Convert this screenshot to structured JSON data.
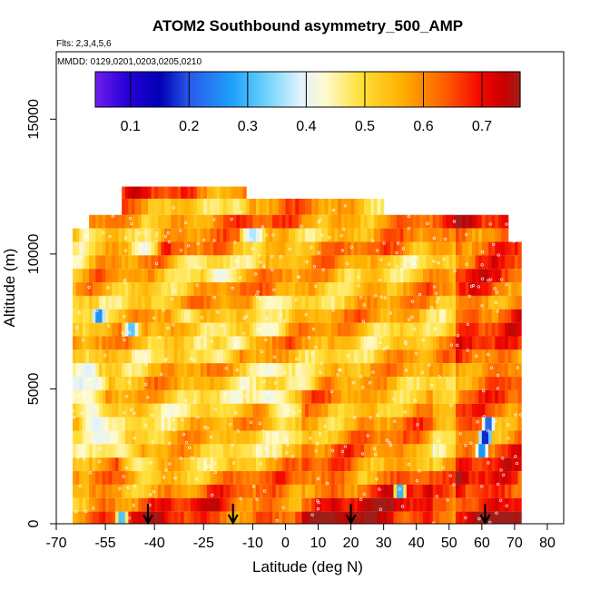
{
  "chart_data": {
    "type": "heatmap",
    "title": "ATOM2 Southbound asymmetry_500_AMP",
    "flights_label": "Flts: 2,3,4,5,6",
    "dates_label": "MMDD: 0129,0201,0203,0205,0210",
    "xlabel": "Latitude (deg N)",
    "ylabel": "Altitude (m)",
    "xlim": [
      -70,
      85
    ],
    "ylim": [
      0,
      17500
    ],
    "x_ticks": [
      -70,
      -55,
      -40,
      -25,
      -10,
      0,
      10,
      20,
      30,
      40,
      50,
      60,
      70,
      80
    ],
    "x_tick_labels": [
      "-70",
      "-55",
      "-40",
      "-25",
      "-10",
      "0",
      "10",
      "20",
      "30",
      "40",
      "50",
      "60",
      "70",
      "80"
    ],
    "y_ticks": [
      0,
      5000,
      10000,
      15000
    ],
    "y_tick_labels": [
      "0",
      "5000",
      "10000",
      "15000"
    ],
    "colorbar": {
      "range": [
        0.04,
        0.765
      ],
      "ticks": [
        0.1,
        0.2,
        0.3,
        0.4,
        0.5,
        0.6,
        0.7
      ],
      "tick_labels": [
        "0.1",
        "0.2",
        "0.3",
        "0.4",
        "0.5",
        "0.6",
        "0.7"
      ]
    },
    "arrow_latitudes": [
      -42,
      -16,
      20,
      61
    ],
    "data_extent": {
      "lat_min": -65,
      "lat_max": 72,
      "alt_min": 0,
      "alt_max": 12500
    },
    "layers": [
      {
        "alt": [
          12050,
          12500
        ],
        "lat": [
          -50,
          -12
        ],
        "baseline": 0.62,
        "features": []
      },
      {
        "alt": [
          11450,
          12050
        ],
        "lat": [
          -50,
          30
        ],
        "baseline": 0.56,
        "features": [
          {
            "lat": -15,
            "width": 4,
            "value": 0.45
          }
        ]
      },
      {
        "alt": [
          10950,
          11450
        ],
        "lat": [
          -60,
          68
        ],
        "baseline": 0.6,
        "features": []
      },
      {
        "alt": [
          10450,
          10950
        ],
        "lat": [
          -65,
          68
        ],
        "baseline": 0.56,
        "features": [
          {
            "lat": -10,
            "width": 4,
            "value": 0.35
          }
        ]
      },
      {
        "alt": [
          9950,
          10450
        ],
        "lat": [
          -65,
          72
        ],
        "baseline": 0.58,
        "features": [
          {
            "lat": -43,
            "width": 5,
            "value": 0.4
          }
        ]
      },
      {
        "alt": [
          9450,
          9950
        ],
        "lat": [
          -65,
          72
        ],
        "baseline": 0.54,
        "features": [
          {
            "lat": -28,
            "width": 6,
            "value": 0.45
          }
        ]
      },
      {
        "alt": [
          8950,
          9450
        ],
        "lat": [
          -65,
          72
        ],
        "baseline": 0.55,
        "features": [
          {
            "lat": -20,
            "width": 5,
            "value": 0.4
          }
        ]
      },
      {
        "alt": [
          8450,
          8950
        ],
        "lat": [
          -65,
          72
        ],
        "baseline": 0.56,
        "features": []
      },
      {
        "alt": [
          7950,
          8450
        ],
        "lat": [
          -65,
          72
        ],
        "baseline": 0.54,
        "features": [
          {
            "lat": -5,
            "width": 6,
            "value": 0.43
          }
        ]
      },
      {
        "alt": [
          7450,
          7950
        ],
        "lat": [
          -65,
          72
        ],
        "baseline": 0.55,
        "features": [
          {
            "lat": -57,
            "width": 2,
            "value": 0.22
          },
          {
            "lat": -30,
            "width": 5,
            "value": 0.44
          }
        ]
      },
      {
        "alt": [
          6950,
          7450
        ],
        "lat": [
          -65,
          72
        ],
        "baseline": 0.54,
        "features": [
          {
            "lat": -47,
            "width": 3,
            "value": 0.28
          },
          {
            "lat": -5,
            "width": 6,
            "value": 0.42
          }
        ]
      },
      {
        "alt": [
          6450,
          6950
        ],
        "lat": [
          -65,
          72
        ],
        "baseline": 0.55,
        "features": [
          {
            "lat": -15,
            "width": 5,
            "value": 0.42
          }
        ]
      },
      {
        "alt": [
          5950,
          6450
        ],
        "lat": [
          -65,
          72
        ],
        "baseline": 0.54,
        "features": [
          {
            "lat": -20,
            "width": 6,
            "value": 0.44
          }
        ]
      },
      {
        "alt": [
          5450,
          5950
        ],
        "lat": [
          -65,
          72
        ],
        "baseline": 0.54,
        "features": [
          {
            "lat": -60,
            "width": 3,
            "value": 0.38
          },
          {
            "lat": -5,
            "width": 7,
            "value": 0.41
          }
        ]
      },
      {
        "alt": [
          4950,
          5450
        ],
        "lat": [
          -65,
          72
        ],
        "baseline": 0.53,
        "features": [
          {
            "lat": -58,
            "width": 4,
            "value": 0.4
          },
          {
            "lat": 5,
            "width": 5,
            "value": 0.44
          }
        ]
      },
      {
        "alt": [
          4450,
          4950
        ],
        "lat": [
          -65,
          72
        ],
        "baseline": 0.52,
        "features": [
          {
            "lat": -60,
            "width": 5,
            "value": 0.42
          },
          {
            "lat": -5,
            "width": 7,
            "value": 0.4
          }
        ]
      },
      {
        "alt": [
          3950,
          4450
        ],
        "lat": [
          -65,
          72
        ],
        "baseline": 0.52,
        "features": [
          {
            "lat": -59,
            "width": 5,
            "value": 0.4
          },
          {
            "lat": 0,
            "width": 6,
            "value": 0.43
          }
        ]
      },
      {
        "alt": [
          3450,
          3950
        ],
        "lat": [
          -65,
          72
        ],
        "baseline": 0.53,
        "features": [
          {
            "lat": -58,
            "width": 5,
            "value": 0.38
          },
          {
            "lat": 62,
            "width": 2,
            "value": 0.15
          }
        ]
      },
      {
        "alt": [
          2950,
          3450
        ],
        "lat": [
          -65,
          72
        ],
        "baseline": 0.52,
        "features": [
          {
            "lat": -57,
            "width": 4,
            "value": 0.4
          },
          {
            "lat": 61,
            "width": 2,
            "value": 0.1
          }
        ]
      },
      {
        "alt": [
          2450,
          2950
        ],
        "lat": [
          -65,
          72
        ],
        "baseline": 0.53,
        "features": [
          {
            "lat": -50,
            "width": 6,
            "value": 0.44
          },
          {
            "lat": 60,
            "width": 2,
            "value": 0.2
          }
        ]
      },
      {
        "alt": [
          1950,
          2450
        ],
        "lat": [
          -65,
          72
        ],
        "baseline": 0.55,
        "features": [
          {
            "lat": -45,
            "width": 6,
            "value": 0.45
          }
        ]
      },
      {
        "alt": [
          1450,
          1950
        ],
        "lat": [
          -65,
          72
        ],
        "baseline": 0.58,
        "features": []
      },
      {
        "alt": [
          950,
          1450
        ],
        "lat": [
          -65,
          72
        ],
        "baseline": 0.6,
        "features": [
          {
            "lat": 35,
            "width": 2,
            "value": 0.22
          }
        ]
      },
      {
        "alt": [
          450,
          950
        ],
        "lat": [
          -65,
          72
        ],
        "baseline": 0.64,
        "features": []
      },
      {
        "alt": [
          0,
          450
        ],
        "lat": [
          -65,
          72
        ],
        "baseline": 0.66,
        "features": [
          {
            "lat": -50,
            "width": 2,
            "value": 0.25
          }
        ]
      }
    ]
  }
}
